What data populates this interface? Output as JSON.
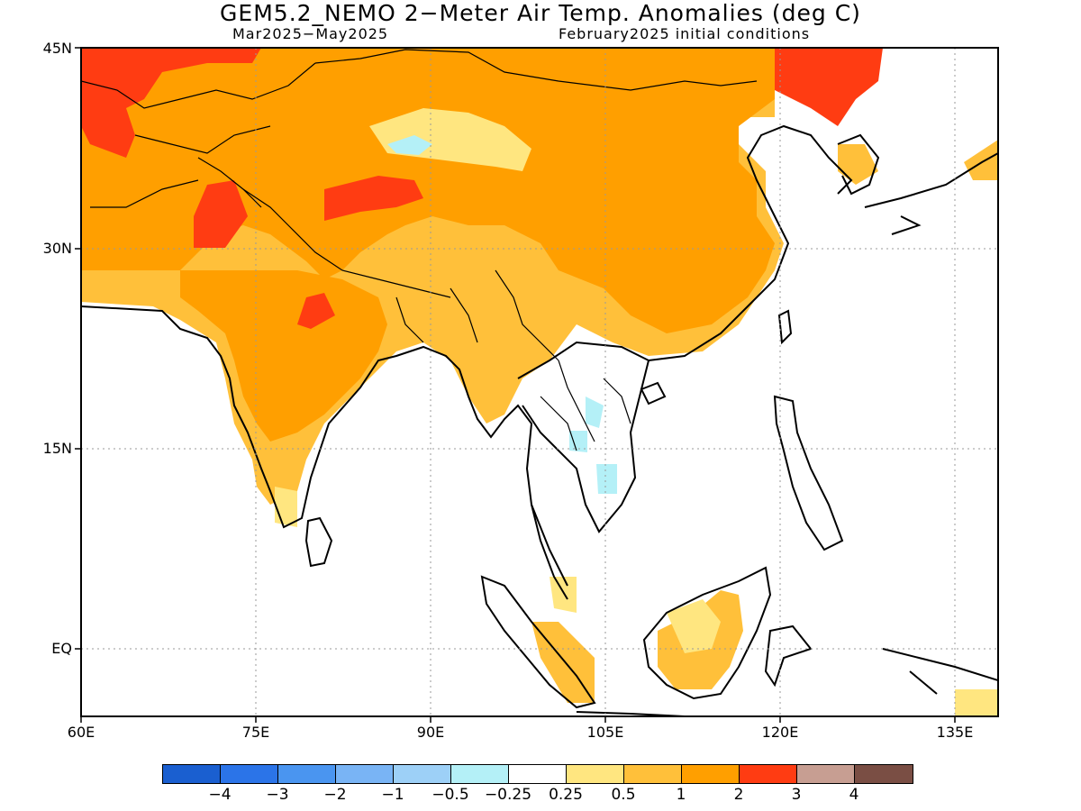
{
  "title": "GEM5.2_NEMO 2−Meter Air Temp. Anomalies (deg C)",
  "subtitle_left": "Mar2025−May2025",
  "subtitle_right": "February2025 initial conditions",
  "axes": {
    "lon_labels": [
      "60E",
      "75E",
      "90E",
      "105E",
      "120E",
      "135E"
    ],
    "lat_labels": [
      "45N",
      "30N",
      "15N",
      "EQ"
    ],
    "grid": true
  },
  "colorbar": {
    "colors": [
      "#1a5fd0",
      "#2b74e8",
      "#4a95f0",
      "#79b4f5",
      "#9dd0f7",
      "#b4f0f7",
      "#ffffff",
      "#ffe680",
      "#ffc03a",
      "#ff9f00",
      "#ff3c12",
      "#c79e92",
      "#7a4e44"
    ],
    "labels": [
      "−4",
      "−3",
      "−2",
      "−1",
      "−0.5",
      "−0.25",
      "0.25",
      "0.5",
      "1",
      "2",
      "3",
      "4"
    ]
  },
  "colors": {
    "anom_0_5_1": "#ffc03a",
    "anom_1_2": "#ff9f00",
    "anom_2_3": "#ff3c12",
    "anom_0_25_0_5": "#ffe680",
    "anom_neg": "#b4f0f7"
  }
}
